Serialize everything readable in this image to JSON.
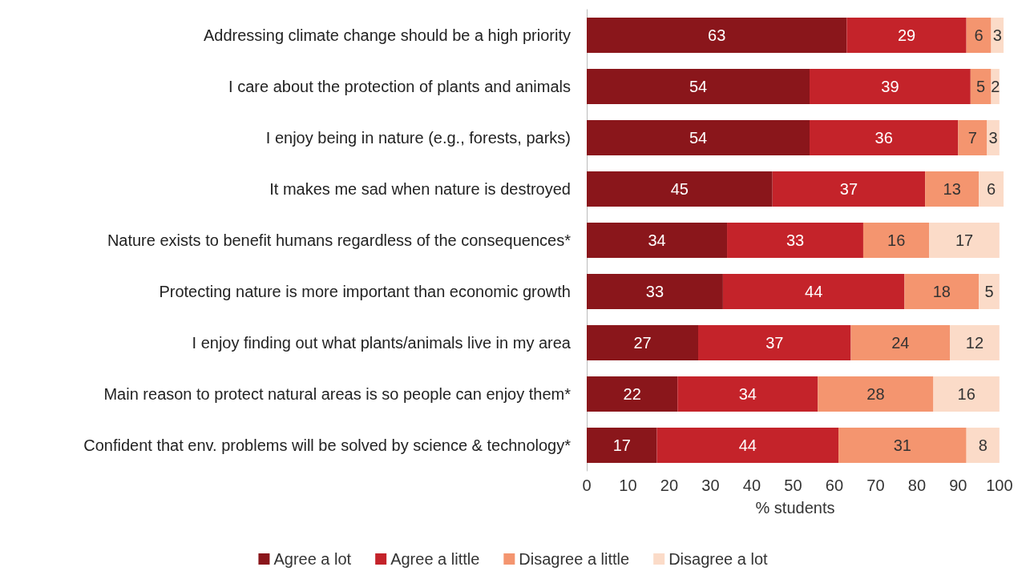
{
  "chart_data": {
    "type": "bar",
    "orientation": "horizontal",
    "stacked": true,
    "xlabel": "% students",
    "categories": [
      "Addressing climate change should be a high priority",
      "I care about the protection of plants and animals",
      "I enjoy being in nature (e.g., forests, parks)",
      "It makes me sad when nature is destroyed",
      "Nature exists to benefit humans regardless of the consequences*",
      "Protecting nature is more important than economic growth",
      "I enjoy finding out what plants/animals live in my area",
      "Main reason to protect natural areas is so people can enjoy them*",
      "Confident that env. problems will be solved by science & technology*"
    ],
    "series": [
      {
        "name": "Agree a lot",
        "color": "#8a161b",
        "values": [
          63,
          54,
          54,
          45,
          34,
          33,
          27,
          22,
          17
        ]
      },
      {
        "name": "Agree a little",
        "color": "#c4232a",
        "values": [
          29,
          39,
          36,
          37,
          33,
          44,
          37,
          34,
          44
        ]
      },
      {
        "name": "Disagree a little",
        "color": "#f4956f",
        "values": [
          6,
          5,
          7,
          13,
          16,
          18,
          24,
          28,
          31
        ]
      },
      {
        "name": "Disagree a lot",
        "color": "#fbdbc8",
        "values": [
          3,
          2,
          3,
          6,
          17,
          5,
          12,
          16,
          8
        ]
      }
    ],
    "xlim": [
      0,
      101
    ],
    "xticks": [
      0,
      10,
      20,
      30,
      40,
      50,
      60,
      70,
      80,
      90,
      100
    ],
    "data_labels": true,
    "grid": false,
    "legend": "bottom"
  }
}
